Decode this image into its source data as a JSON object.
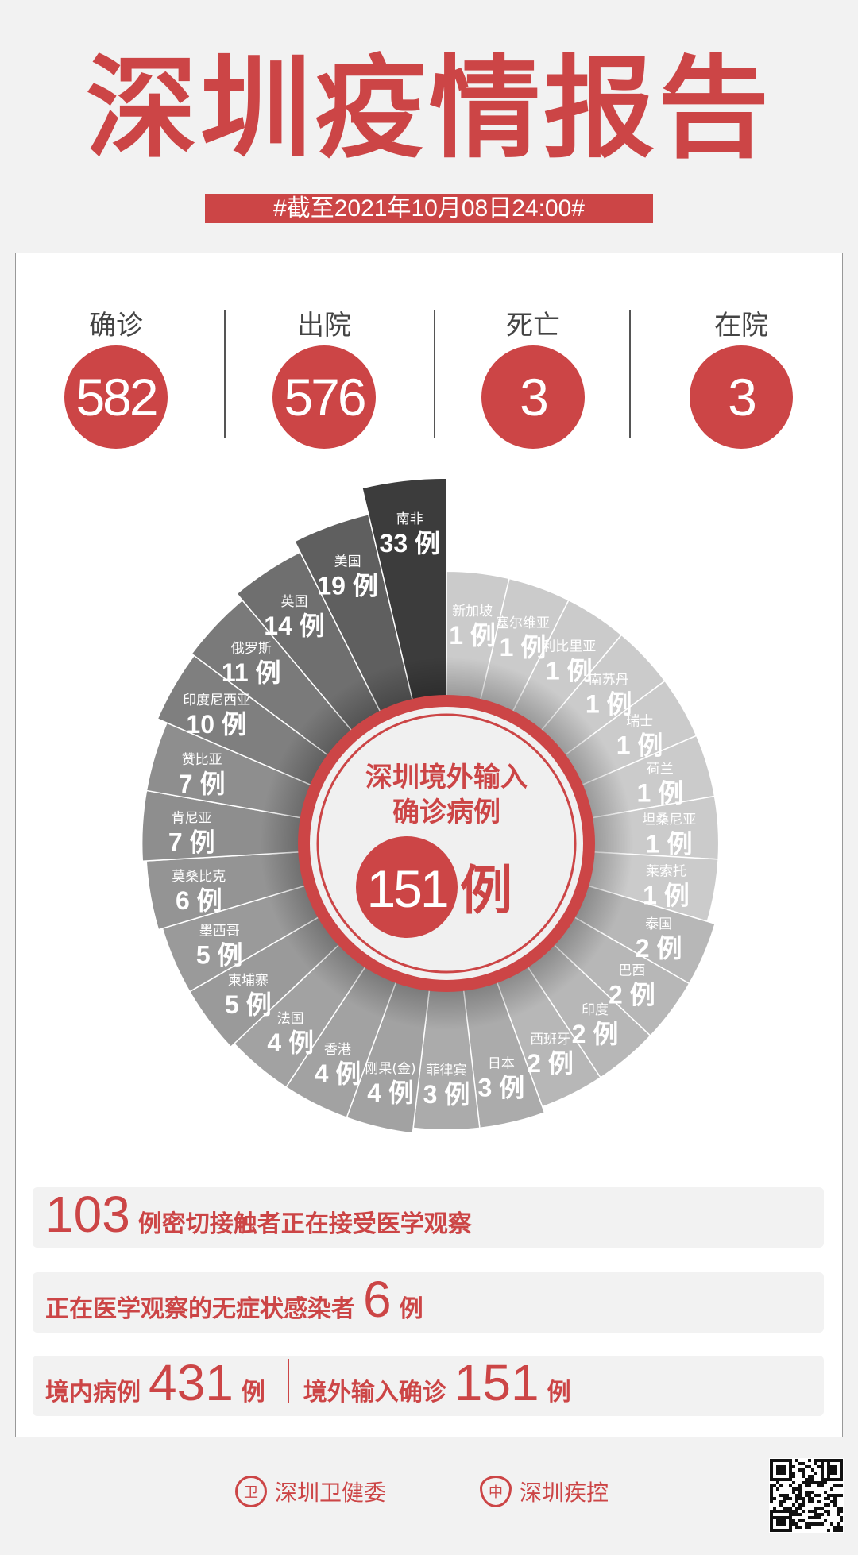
{
  "header": {
    "title": "深圳疫情报告",
    "date_banner": "#截至2021年10月08日24:00#"
  },
  "stats": [
    {
      "label": "确诊",
      "value": "582"
    },
    {
      "label": "出院",
      "value": "576"
    },
    {
      "label": "死亡",
      "value": "3"
    },
    {
      "label": "在院",
      "value": "3"
    }
  ],
  "colors": {
    "accent": "#cc4546",
    "dark_sector": "#3c3c3c",
    "light_sector": "#cbcbcb"
  },
  "chart_data": {
    "type": "polar-bar (nightingale rose)",
    "center_title_line1": "深圳境外输入",
    "center_title_line2": "确诊病例",
    "center_total": "151",
    "unit": "例",
    "categories": [
      "新加坡",
      "塞尔维亚",
      "利比里亚",
      "南苏丹",
      "瑞士",
      "荷兰",
      "坦桑尼亚",
      "莱索托",
      "泰国",
      "巴西",
      "印度",
      "西班牙",
      "日本",
      "菲律宾",
      "刚果(金)",
      "香港",
      "法国",
      "柬埔寨",
      "墨西哥",
      "莫桑比克",
      "肯尼亚",
      "赞比亚",
      "印度尼西亚",
      "俄罗斯",
      "英国",
      "美国",
      "南非"
    ],
    "values": [
      1,
      1,
      1,
      1,
      1,
      1,
      1,
      1,
      2,
      2,
      2,
      2,
      3,
      3,
      4,
      4,
      4,
      5,
      5,
      6,
      7,
      7,
      10,
      11,
      14,
      19,
      33
    ]
  },
  "summary": {
    "close_contacts": {
      "value": "103",
      "text": "例密切接触者正在接受医学观察"
    },
    "asymptomatic": {
      "text": "正在医学观察的无症状感染者",
      "value": "6",
      "unit": "例"
    },
    "local": {
      "text": "境内病例",
      "value": "431",
      "unit": "例"
    },
    "imported": {
      "text": "境外输入确诊",
      "value": "151",
      "unit": "例"
    }
  },
  "footer": {
    "org1": "深圳卫健委",
    "org2": "深圳疾控",
    "qr_icon": "qr-code-icon"
  }
}
